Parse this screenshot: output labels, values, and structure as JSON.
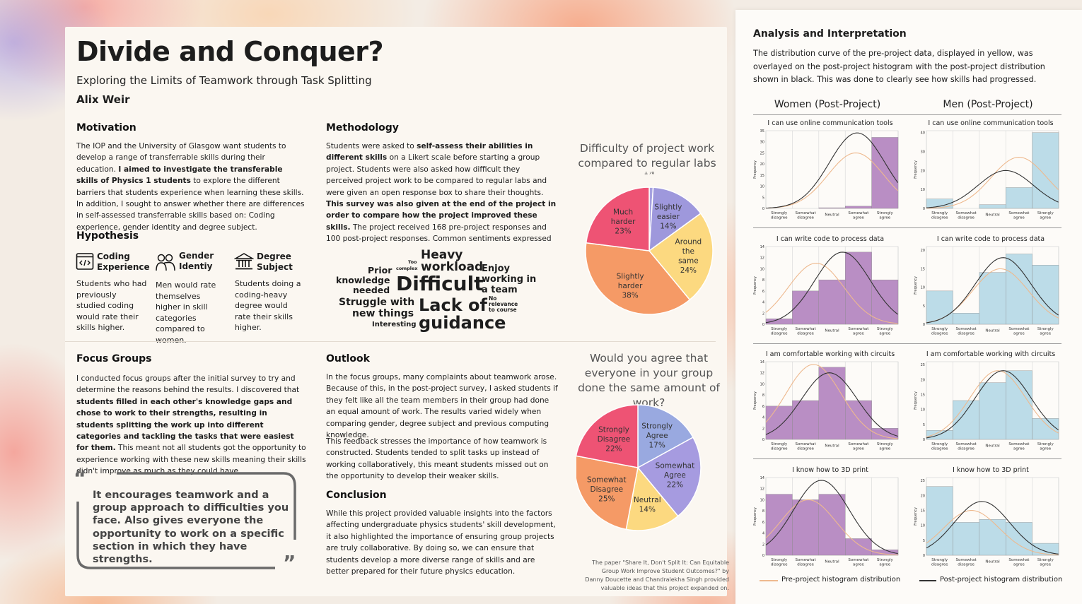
{
  "header": {
    "title": "Divide and Conquer?",
    "subtitle": "Exploring the Limits of Teamwork through Task Splitting",
    "author": "Alix Weir"
  },
  "motivation": {
    "heading": "Motivation",
    "t1": "The IOP and the University of Glasgow want students to develop a range of transferrable skills during their education. ",
    "b1": "I aimed to investigate the transferable skills of Physics 1 students",
    "t2": " to explore the different barriers that students experience when learning these skills. In addition, I sought to answer whether there are differences in self-assessed transferrable skills based on: Coding experience, gender identity and degree subject."
  },
  "hypothesis": {
    "heading": "Hypothesis",
    "items": [
      {
        "icon": "code-icon",
        "title": "Coding Experience",
        "text": "Students who had previously studied coding would rate their skills higher."
      },
      {
        "icon": "people-icon",
        "title": "Gender Identiy",
        "text": "Men would rate themselves higher in skill categories compared to women."
      },
      {
        "icon": "university-icon",
        "title": "Degree Subject",
        "text": "Students doing a coding-heavy degree would rate their skills higher."
      }
    ]
  },
  "methodology": {
    "heading": "Methodology",
    "t1": "Students were asked to ",
    "b1": "self-assess their abilities in different skills",
    "t2": " on a Likert scale before starting a group project. Students were also asked how difficult they perceived project work to be compared to regular labs and were given an open response box to share their thoughts. ",
    "b2": "This survey was also given at the end of the project in order to compare how the project improved these skills.",
    "t3": " The project received 168 pre-project responses and 100 post-project responses. Common sentiments expressed in the open response box are shown in the word cloud below."
  },
  "wordcloud": [
    {
      "text": "Heavy",
      "color": "#f0a160"
    },
    {
      "text": "workload",
      "color": "#f0a160"
    },
    {
      "text": "Difficult",
      "color": "#ef5a72"
    },
    {
      "text": "Lack of",
      "color": "#f5d27a"
    },
    {
      "text": "guidance",
      "color": "#f5d27a"
    },
    {
      "text": "Prior",
      "color": "#f8cfa0"
    },
    {
      "text": "knowledge",
      "color": "#f8cfa0"
    },
    {
      "text": "needed",
      "color": "#f8cfa0"
    },
    {
      "text": "Enjoy",
      "color": "#9a96dd"
    },
    {
      "text": "working in",
      "color": "#9a96dd"
    },
    {
      "text": "a team",
      "color": "#9a96dd"
    },
    {
      "text": "Struggle with",
      "color": "#f0926a"
    },
    {
      "text": "new things",
      "color": "#f0926a"
    },
    {
      "text": "Interesting",
      "color": "#9a96dd"
    },
    {
      "text": "Too",
      "color": "#9a96dd"
    },
    {
      "text": "complex",
      "color": "#9a96dd"
    },
    {
      "text": "No",
      "color": "#ef6a7a"
    },
    {
      "text": "relevance",
      "color": "#ef6a7a"
    },
    {
      "text": "to course",
      "color": "#ef6a7a"
    }
  ],
  "focus": {
    "heading": "Focus Groups",
    "t1": "I conducted focus groups after the initial survey to try and determine the reasons behind the results. I discovered that ",
    "b1": "students filled in each other's knowledge gaps and chose to work to their strengths, resulting in students splitting the work up into different categories and tackling the tasks that were easiest for them.",
    "t2": " This meant not all students got the opportunity to experience working with these new skills meaning their skills didn't improve as much as they could have.",
    "quote": "It encourages teamwork and a group approach to difficulties you face. Also gives everyone the opportunity to work on a specific section in which they have strengths.",
    "open_mark": "“",
    "close_mark": "”"
  },
  "outlook": {
    "heading": "Outlook",
    "p1": "In the focus groups, many complaints about teamwork arose. Because of this, in the post-project survey, I asked students if they felt like all the team members in their group had done an equal amount of work. The results varied widely when comparing gender, degree subject and previous computing knowledge.",
    "p2": "This feedback stresses the importance of how teamwork is constructed. Students tended to split tasks up instead of working collaboratively, this meant students missed out on the opportunity to develop their weaker skills."
  },
  "conclusion": {
    "heading": "Conclusion",
    "p1": "While this project provided valuable insights into the factors affecting undergraduate physics students' skill development, it also highlighted the importance of ensuring group projects are truly collaborative. By doing so, we can ensure that students develop a more diverse range of skills and are better prepared for their future physics education."
  },
  "note": "The paper \"Share It, Don't Split It: Can Equitable Group Work Improve Student Outcomes?\" by Danny Doucette and Chandralekha Singh provided valuable ideas that this project expanded on.",
  "analysis": {
    "heading": "Analysis and Interpretation",
    "text": "The distribution curve of the pre-project data, displayed in yellow, was overlayed on the post-project histogram with the post-project distribution shown in black. This was done to clearly see how skills had progressed.",
    "col_women": "Women (Post-Project)",
    "col_men": "Men (Post-Project)",
    "legend_pre": "Pre-project histogram distribution",
    "legend_post": "Post-project histogram distribution",
    "ylabel": "Frequency",
    "categories": [
      "Strongly disagree",
      "Somewhat disagree",
      "Neutral",
      "Somewhat agree",
      "Strongly agree"
    ]
  },
  "colors": {
    "women_bar": "#b98ec4",
    "men_bar": "#bcdce8",
    "pre_curve": "#eeb98e",
    "post_curve": "#333333"
  },
  "chart_data": [
    {
      "type": "pie",
      "title": "Difficulty of project work compared to regular labs",
      "labels": [
        "Much easier",
        "Slightly easier",
        "Around the same",
        "Slightly harder",
        "Much harder"
      ],
      "values": [
        1,
        14,
        24,
        38,
        23
      ],
      "colors": [
        "#a7a2e0",
        "#9e98dc",
        "#fcd980",
        "#f59a66",
        "#ee5374"
      ]
    },
    {
      "type": "pie",
      "title": "Would you agree that everyone in your group done the same amount of work?",
      "labels": [
        "Strongly Agree",
        "Somewhat Agree",
        "Neutral",
        "Somewhat Disagree",
        "Strongly Disagree"
      ],
      "values": [
        17,
        22,
        14,
        25,
        22
      ],
      "colors": [
        "#99a9e0",
        "#a69be0",
        "#fcd980",
        "#f59a66",
        "#ee5374"
      ]
    },
    {
      "type": "bar",
      "group": "women",
      "title": "I can use online communication tools",
      "values": [
        0,
        0,
        0.3,
        1,
        32
      ],
      "ylim": [
        0,
        35
      ],
      "yticks": [
        0,
        5,
        10,
        15,
        20,
        25,
        30,
        35
      ],
      "pre_peak": [
        25,
        3.9
      ],
      "post_peak": [
        34,
        3.95
      ]
    },
    {
      "type": "bar",
      "group": "men",
      "title": "I can use online communication tools",
      "values": [
        5,
        0,
        2,
        11,
        40
      ],
      "ylim": [
        0,
        41
      ],
      "yticks": [
        0,
        10,
        20,
        30,
        40
      ],
      "pre_peak": [
        27,
        4.0
      ],
      "post_peak": [
        20,
        3.5
      ]
    },
    {
      "type": "bar",
      "group": "women",
      "title": "I can write code to process data",
      "values": [
        1,
        6,
        8,
        13,
        8
      ],
      "ylim": [
        0,
        14
      ],
      "yticks": [
        0,
        2,
        4,
        6,
        8,
        10,
        12,
        14
      ],
      "pre_peak": [
        11,
        2.4
      ],
      "post_peak": [
        13,
        3.4
      ]
    },
    {
      "type": "bar",
      "group": "men",
      "title": "I can write code to process data",
      "values": [
        9,
        3,
        14,
        19,
        16
      ],
      "ylim": [
        0,
        21
      ],
      "yticks": [
        0,
        5,
        10,
        15,
        20
      ],
      "pre_peak": [
        15,
        3.3
      ],
      "post_peak": [
        18,
        3.4
      ]
    },
    {
      "type": "bar",
      "group": "women",
      "title": "I am comfortable working with circuits",
      "values": [
        6,
        7,
        13,
        7,
        2
      ],
      "ylim": [
        0,
        14
      ],
      "yticks": [
        0,
        2,
        4,
        6,
        8,
        10,
        12,
        14
      ],
      "pre_peak": [
        13.5,
        2.3
      ],
      "post_peak": [
        12,
        2.9
      ]
    },
    {
      "type": "bar",
      "group": "men",
      "title": "I am comfortable working with circuits",
      "values": [
        3,
        13,
        19,
        23,
        7
      ],
      "ylim": [
        0,
        26
      ],
      "yticks": [
        0,
        5,
        10,
        15,
        20,
        25
      ],
      "pre_peak": [
        23,
        3.2
      ],
      "post_peak": [
        23,
        3.4
      ]
    },
    {
      "type": "bar",
      "group": "women",
      "title": "I know how to 3D print",
      "values": [
        11,
        10,
        11,
        3,
        1
      ],
      "ylim": [
        0,
        14
      ],
      "yticks": [
        0,
        2,
        4,
        6,
        8,
        10,
        12,
        14
      ],
      "pre_peak": [
        10,
        2.1
      ],
      "post_peak": [
        13.5,
        2.6
      ]
    },
    {
      "type": "bar",
      "group": "men",
      "title": "I know how to 3D print",
      "values": [
        23,
        11,
        12,
        11,
        4
      ],
      "ylim": [
        0,
        26
      ],
      "yticks": [
        0,
        5,
        10,
        15,
        20,
        25
      ],
      "pre_peak": [
        15,
        2.2
      ],
      "post_peak": [
        18,
        2.6
      ]
    }
  ]
}
